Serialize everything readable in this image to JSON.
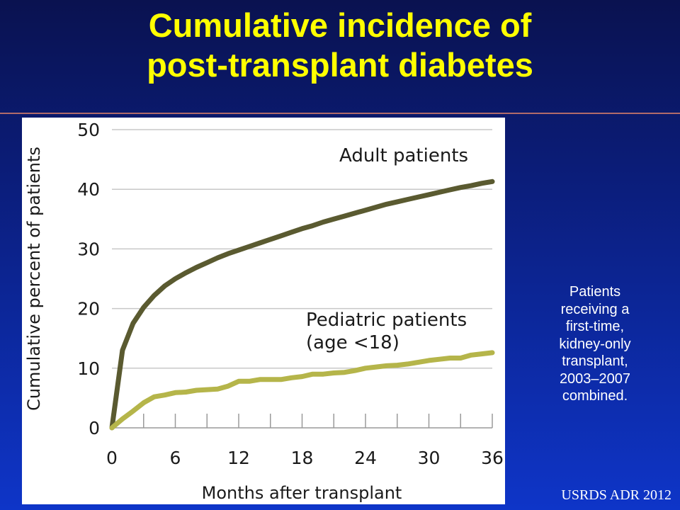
{
  "slide": {
    "title_lines": [
      "Cumulative incidence of",
      "post-transplant diabetes"
    ],
    "note_lines": [
      "Patients",
      "receiving a",
      "first-time,",
      "kidney-only",
      "transplant,",
      "2003–2007",
      "combined."
    ],
    "source": "USRDS ADR 2012"
  },
  "chart_data": {
    "type": "line",
    "title": "",
    "xlabel": "Months after transplant",
    "ylabel": "Cumulative percent of patients",
    "xlim": [
      0,
      36
    ],
    "ylim": [
      0,
      50
    ],
    "x_ticks": [
      0,
      6,
      12,
      18,
      24,
      30,
      36
    ],
    "y_ticks": [
      0,
      10,
      20,
      30,
      40,
      50
    ],
    "grid": "horizontal",
    "series": [
      {
        "name": "Adult patients",
        "color": "#5a5a30",
        "x": [
          0,
          1,
          2,
          3,
          4,
          5,
          6,
          7,
          8,
          9,
          10,
          11,
          12,
          13,
          14,
          15,
          16,
          17,
          18,
          19,
          20,
          21,
          22,
          23,
          24,
          25,
          26,
          27,
          28,
          29,
          30,
          31,
          32,
          33,
          34,
          35,
          36
        ],
        "values": [
          0,
          13,
          17.5,
          20.2,
          22.2,
          23.8,
          25,
          26,
          26.9,
          27.7,
          28.5,
          29.2,
          29.8,
          30.4,
          31,
          31.6,
          32.2,
          32.8,
          33.4,
          33.9,
          34.5,
          35,
          35.5,
          36,
          36.5,
          37,
          37.5,
          37.9,
          38.3,
          38.7,
          39.1,
          39.5,
          39.9,
          40.3,
          40.6,
          41,
          41.3
        ]
      },
      {
        "name": "Pediatric patients (age <18)",
        "color": "#b5b54a",
        "x": [
          0,
          1,
          2,
          3,
          4,
          5,
          6,
          7,
          8,
          9,
          10,
          11,
          12,
          13,
          14,
          15,
          16,
          17,
          18,
          19,
          20,
          21,
          22,
          23,
          24,
          25,
          26,
          27,
          28,
          29,
          30,
          31,
          32,
          33,
          34,
          35,
          36
        ],
        "values": [
          0,
          1.5,
          2.8,
          4.2,
          5.2,
          5.5,
          5.9,
          6,
          6.3,
          6.4,
          6.5,
          7,
          7.8,
          7.8,
          8.1,
          8.1,
          8.1,
          8.4,
          8.6,
          9,
          9,
          9.2,
          9.3,
          9.6,
          10,
          10.2,
          10.4,
          10.5,
          10.7,
          11,
          11.3,
          11.5,
          11.7,
          11.7,
          12.2,
          12.4,
          12.6
        ]
      }
    ],
    "annotations": [
      {
        "lines": [
          "Adult patients"
        ],
        "series": 0
      },
      {
        "lines": [
          "Pediatric patients",
          "(age <18)"
        ],
        "series": 1
      }
    ]
  }
}
